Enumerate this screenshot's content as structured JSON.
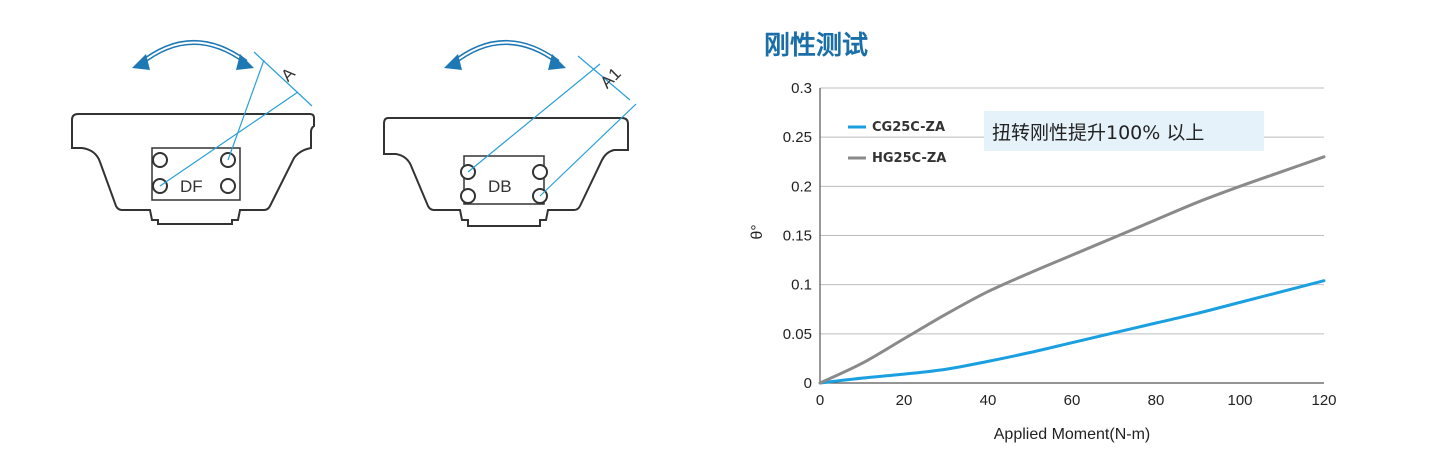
{
  "diagram": {
    "left_label": "DF",
    "left_dimension": "A",
    "right_label": "DB",
    "right_dimension": "A1",
    "arrow_color": "#1e78b4",
    "line_color": "#2aa0d8"
  },
  "chart_data": {
    "type": "line",
    "title": "刚性测试",
    "xlabel": "Applied Moment(N-m)",
    "ylabel": "θ°",
    "xlim": [
      0,
      120
    ],
    "ylim": [
      0,
      0.3
    ],
    "x_ticks": [
      "0",
      "20",
      "40",
      "60",
      "80",
      "100",
      "120"
    ],
    "y_ticks": [
      "0",
      "0.05",
      "0.1",
      "0.15",
      "0.2",
      "0.25",
      "0.3"
    ],
    "grid": true,
    "legend_position": "top-left",
    "callout": "扭转刚性提升100% 以上",
    "series": [
      {
        "name": "CG25C-ZA",
        "color": "#1a9fe0",
        "x": [
          0,
          10,
          20,
          30,
          40,
          50,
          60,
          70,
          80,
          90,
          100,
          110,
          120
        ],
        "values": [
          0,
          0.005,
          0.009,
          0.014,
          0.022,
          0.031,
          0.041,
          0.051,
          0.061,
          0.071,
          0.082,
          0.093,
          0.104
        ]
      },
      {
        "name": "HG25C-ZA",
        "color": "#8a8a8a",
        "x": [
          0,
          10,
          20,
          30,
          40,
          50,
          60,
          70,
          80,
          90,
          100,
          110,
          120
        ],
        "values": [
          0,
          0.02,
          0.045,
          0.07,
          0.093,
          0.112,
          0.13,
          0.148,
          0.166,
          0.184,
          0.2,
          0.215,
          0.23
        ]
      }
    ]
  }
}
